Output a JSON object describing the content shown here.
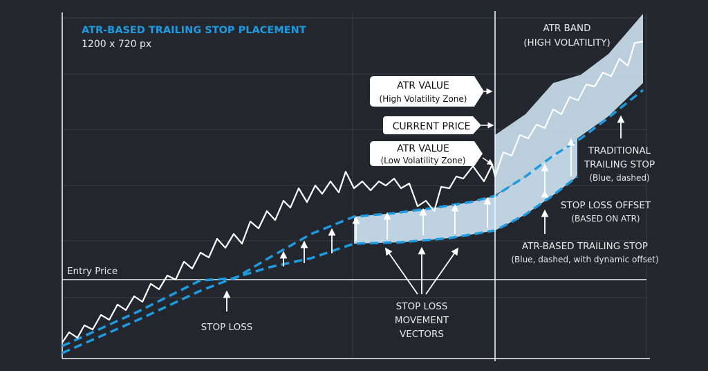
{
  "header": {
    "title": "ATR-BASED TRAILING STOP PLACEMENT",
    "subtitle": "1200 x 720 px"
  },
  "colors": {
    "background": "#23272d",
    "accent_blue": "#1e9be0",
    "band_fill": "#cfe6f5",
    "price_line": "#ffffff",
    "grid": "#3a3f46",
    "text": "#e8e8e8"
  },
  "chart_data": {
    "type": "line",
    "title": "ATR-BASED TRAILING STOP PLACEMENT",
    "xlabel": "",
    "ylabel": "",
    "grid": true,
    "entry_price_label": "Entry Price",
    "series": [
      {
        "name": "CURRENT PRICE",
        "style": "white solid"
      },
      {
        "name": "TRADITIONAL TRAILING STOP",
        "style": "blue dashed"
      },
      {
        "name": "ATR-BASED TRAILING STOP",
        "style": "blue dashed, dynamic offset"
      }
    ],
    "regions": [
      {
        "name": "ATR BAND (HIGH VOLATILITY)"
      },
      {
        "name": "Low Volatility Zone"
      },
      {
        "name": "High Volatility Zone"
      }
    ]
  },
  "annotations": {
    "atr_band": [
      "ATR BAND",
      "(HIGH VOLATILITY)"
    ],
    "atr_high": {
      "main": "ATR VALUE",
      "sub": "(High Volatility Zone)"
    },
    "current_price": "CURRENT PRICE",
    "atr_low": {
      "main": "ATR VALUE",
      "sub": "(Low Volatility Zone)"
    },
    "traditional_stop": [
      "TRADITIONAL",
      "TRAILING STOP",
      "(Blue, dashed)"
    ],
    "stop_offset": [
      "STOP LOSS OFFSET",
      "(BASED ON ATR)"
    ],
    "atr_stop": [
      "ATR-BASED TRAILING STOP",
      "(Blue, dashed, with dynamic offset)"
    ],
    "vectors": [
      "STOP LOSS",
      "MOVEMENT",
      "VECTORS"
    ],
    "stop_loss": "STOP LOSS"
  }
}
